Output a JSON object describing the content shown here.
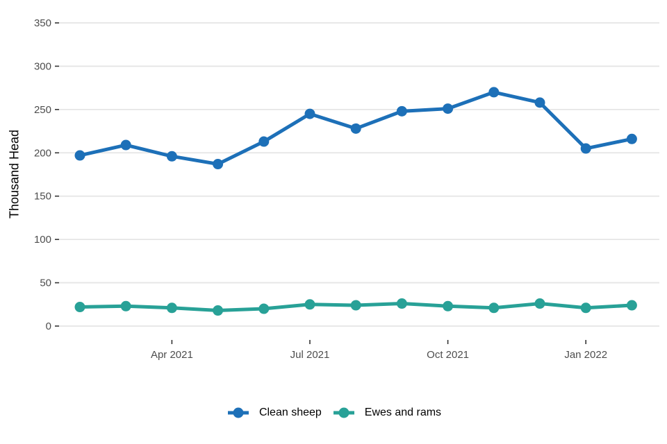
{
  "chart_data": {
    "type": "line",
    "title": "",
    "xlabel": "",
    "ylabel": "Thousand Head",
    "ylim": [
      0,
      350
    ],
    "yticks": [
      0,
      50,
      100,
      150,
      200,
      250,
      300,
      350
    ],
    "x": [
      "Feb 2021",
      "Mar 2021",
      "Apr 2021",
      "May 2021",
      "Jun 2021",
      "Jul 2021",
      "Aug 2021",
      "Sep 2021",
      "Oct 2021",
      "Nov 2021",
      "Dec 2021",
      "Jan 2022",
      "Feb 2022"
    ],
    "x_tick_indices": [
      2,
      5,
      8,
      11
    ],
    "x_tick_labels": [
      "Apr 2021",
      "Jul 2021",
      "Oct 2021",
      "Jan 2022"
    ],
    "grid": "horizontal-only",
    "legend_position": "bottom-center",
    "series": [
      {
        "name": "Clean sheep",
        "color": "#1d70b8",
        "values": [
          197,
          209,
          196,
          187,
          213,
          245,
          228,
          248,
          251,
          270,
          258,
          205,
          216
        ]
      },
      {
        "name": "Ewes and rams",
        "color": "#28a197",
        "values": [
          22,
          23,
          21,
          18,
          20,
          25,
          24,
          26,
          23,
          21,
          26,
          21,
          24
        ]
      }
    ],
    "style": {
      "gridline_color": "#e5e5e5",
      "tick_color": "#333333",
      "tick_label_color": "#4d4d4d",
      "axis_title_color": "#000000"
    }
  }
}
